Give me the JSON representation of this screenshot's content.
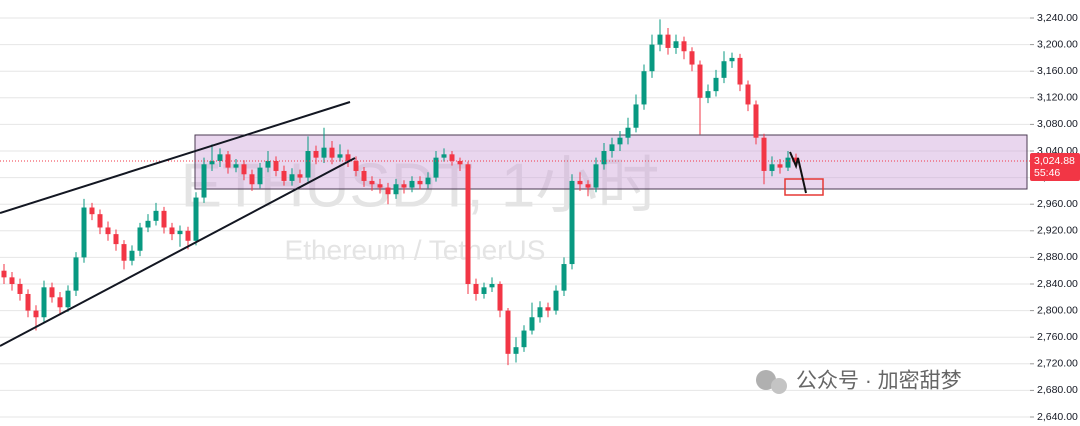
{
  "chart_data": {
    "type": "candlestick",
    "watermark_title": "ETHUSDT, 1小时",
    "watermark_subtitle": "Ethereum / TetherUS",
    "footer_brand": "公众号 · 加密甜梦",
    "up_color": "#089981",
    "down_color": "#f23645",
    "grid": true,
    "ylim": [
      2640,
      3240
    ],
    "yticks": [
      {
        "value": 2640,
        "label": "2,640.00"
      },
      {
        "value": 2680,
        "label": "2,680.00"
      },
      {
        "value": 2720,
        "label": "2,720.00"
      },
      {
        "value": 2760,
        "label": "2,760.00"
      },
      {
        "value": 2800,
        "label": "2,800.00"
      },
      {
        "value": 2840,
        "label": "2,840.00"
      },
      {
        "value": 2880,
        "label": "2,880.00"
      },
      {
        "value": 2920,
        "label": "2,920.00"
      },
      {
        "value": 2960,
        "label": "2,960.00"
      },
      {
        "value": 3000,
        "label": "3,000.00"
      },
      {
        "value": 3040,
        "label": "3,040.00"
      },
      {
        "value": 3080,
        "label": "3,080.00"
      },
      {
        "value": 3120,
        "label": "3,120.00"
      },
      {
        "value": 3160,
        "label": "3,160.00"
      },
      {
        "value": 3200,
        "label": "3,200.00"
      },
      {
        "value": 3240,
        "label": "3,240.00"
      }
    ],
    "last_price": {
      "value": 3024.88,
      "label": "3,024.88"
    },
    "countdown": "55:46",
    "open": [
      2860,
      2850,
      2840,
      2825,
      2800,
      2790,
      2835,
      2820,
      2805,
      2830,
      2880,
      2955,
      2945,
      2925,
      2915,
      2900,
      2875,
      2890,
      2925,
      2935,
      2950,
      2925,
      2915,
      2920,
      2905,
      2970,
      3020,
      3025,
      3035,
      3015,
      3020,
      3005,
      2990,
      3015,
      3025,
      3010,
      2995,
      3005,
      3000,
      3040,
      3030,
      3045,
      3030,
      3035,
      3025,
      3010,
      2995,
      2990,
      2985,
      2975,
      2990,
      2985,
      2995,
      2990,
      3000,
      3030,
      3035,
      3025,
      3020,
      2840,
      2825,
      2835,
      2840,
      2800,
      2735,
      2745,
      2770,
      2790,
      2805,
      2800,
      2830,
      2870,
      2995,
      2990,
      2985,
      3020,
      3040,
      3050,
      3060,
      3075,
      3110,
      3160,
      3200,
      3215,
      3195,
      3205,
      3190,
      3170,
      3120,
      3130,
      3150,
      3175,
      3180,
      3140,
      3110,
      3060,
      3010,
      3020,
      3015,
      3030
    ],
    "high": [
      2870,
      2858,
      2848,
      2832,
      2808,
      2845,
      2842,
      2828,
      2838,
      2888,
      2968,
      2962,
      2952,
      2934,
      2922,
      2906,
      2898,
      2932,
      2945,
      2962,
      2956,
      2932,
      2928,
      2926,
      2978,
      3030,
      3050,
      3044,
      3040,
      3028,
      3026,
      3012,
      3022,
      3040,
      3032,
      3018,
      3014,
      3012,
      3062,
      3048,
      3075,
      3055,
      3050,
      3042,
      3032,
      3016,
      3002,
      2998,
      2992,
      2998,
      2996,
      3002,
      3002,
      3008,
      3040,
      3044,
      3040,
      3030,
      3024,
      2848,
      2842,
      2850,
      2844,
      2804,
      2760,
      2778,
      2812,
      2814,
      2812,
      2838,
      2880,
      3005,
      3008,
      2996,
      3030,
      3052,
      3060,
      3070,
      3090,
      3125,
      3170,
      3215,
      3238,
      3225,
      3215,
      3212,
      3196,
      3176,
      3140,
      3162,
      3190,
      3188,
      3186,
      3146,
      3116,
      3066,
      3032,
      3028,
      3040,
      3036
    ],
    "low": [
      2840,
      2830,
      2815,
      2790,
      2770,
      2782,
      2812,
      2795,
      2798,
      2822,
      2872,
      2936,
      2915,
      2905,
      2890,
      2862,
      2868,
      2882,
      2918,
      2928,
      2916,
      2906,
      2896,
      2892,
      2898,
      2962,
      3010,
      3016,
      3006,
      3008,
      2996,
      2980,
      2984,
      3008,
      3002,
      2988,
      2988,
      2992,
      2994,
      3020,
      3022,
      3020,
      3024,
      3016,
      3002,
      2986,
      2980,
      2976,
      2960,
      2968,
      2976,
      2978,
      2982,
      2984,
      2994,
      3024,
      3018,
      3010,
      2825,
      2815,
      2818,
      2828,
      2790,
      2718,
      2722,
      2738,
      2764,
      2782,
      2790,
      2794,
      2822,
      2862,
      2980,
      2972,
      2978,
      3012,
      3030,
      3040,
      3050,
      3068,
      3102,
      3150,
      3190,
      3185,
      3186,
      3178,
      3160,
      3065,
      3112,
      3122,
      3142,
      3165,
      3130,
      3100,
      3050,
      2990,
      3002,
      3006,
      3010,
      3018
    ],
    "close": [
      2850,
      2840,
      2825,
      2800,
      2790,
      2835,
      2820,
      2805,
      2830,
      2880,
      2955,
      2945,
      2925,
      2915,
      2900,
      2875,
      2890,
      2925,
      2935,
      2950,
      2925,
      2915,
      2920,
      2905,
      2970,
      3020,
      3025,
      3035,
      3015,
      3020,
      3005,
      2990,
      3015,
      3025,
      3010,
      2995,
      3005,
      3000,
      3040,
      3030,
      3045,
      3030,
      3035,
      3025,
      3010,
      2995,
      2990,
      2985,
      2975,
      2990,
      2985,
      2995,
      2990,
      3000,
      3030,
      3035,
      3025,
      3020,
      2840,
      2825,
      2835,
      2840,
      2800,
      2735,
      2745,
      2770,
      2790,
      2805,
      2800,
      2830,
      2870,
      2995,
      2990,
      2985,
      3020,
      3040,
      3050,
      3060,
      3075,
      3110,
      3160,
      3200,
      3215,
      3195,
      3205,
      3190,
      3170,
      3120,
      3130,
      3150,
      3175,
      3180,
      3140,
      3110,
      3060,
      3010,
      3020,
      3015,
      3030,
      3025
    ]
  }
}
